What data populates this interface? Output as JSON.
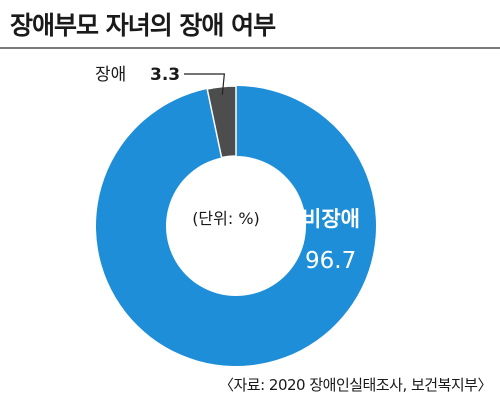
{
  "title": "장애부모 자녀의 장애 여부",
  "unit_note": "(단위: %)",
  "source": "〈자료: 2020 장애인실태조사, 보건복지부〉",
  "colors": {
    "non_disabled": "#1f8ed8",
    "disabled": "#4d4d4d",
    "background": "#ffffff",
    "label_white": "#ffffff"
  },
  "chart_data": {
    "type": "pie",
    "donut": true,
    "title": "장애부모 자녀의 장애 여부",
    "unit": "%",
    "slices": [
      {
        "label": "장애",
        "value": 3.3,
        "value_text": "3.3"
      },
      {
        "label": "비장애",
        "value": 96.7,
        "value_text": "96.7"
      }
    ]
  }
}
